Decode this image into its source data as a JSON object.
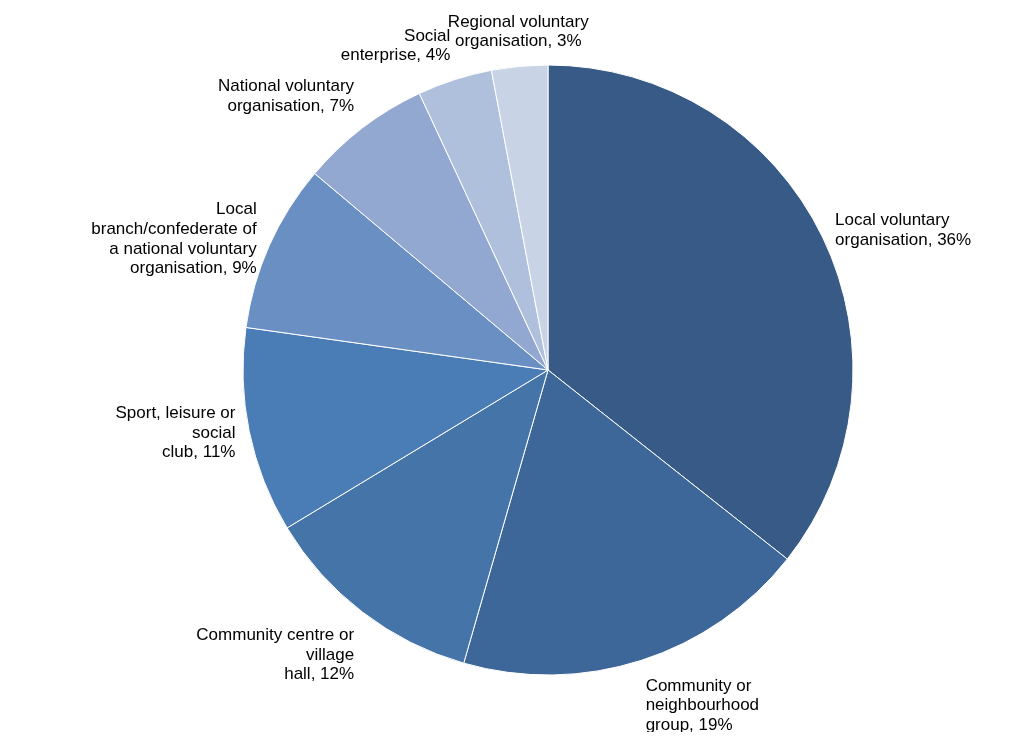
{
  "chart_data": {
    "type": "pie",
    "categories": [
      "Local voluntary organisation",
      "Community or neighbourhood group",
      "Community centre or village hall",
      "Sport, leisure or social club",
      "Local branch/confederate of a national voluntary organisation",
      "National voluntary organisation",
      "Social enterprise",
      "Regional voluntary organisation"
    ],
    "values": [
      36,
      19,
      12,
      11,
      9,
      7,
      4,
      3
    ],
    "value_labels": [
      "36%",
      "19%",
      "12%",
      "11%",
      "9%",
      "7%",
      "4%",
      "3%"
    ],
    "colors": [
      "#375a87",
      "#3e6799",
      "#4574a9",
      "#4a7cb6",
      "#6a8fc3",
      "#93a8d0",
      "#afc0dc",
      "#c9d3e6"
    ],
    "legend": false
  }
}
